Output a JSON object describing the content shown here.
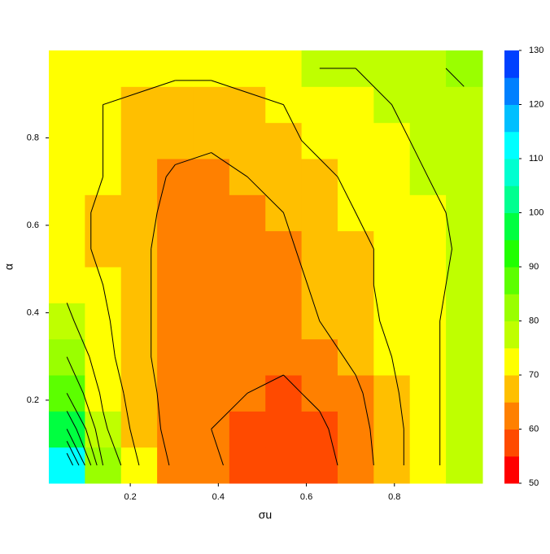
{
  "chart_data": {
    "type": "heatmap",
    "xlabel": "σu",
    "ylabel": "α",
    "xlim": [
      0.015,
      1.0
    ],
    "ylim": [
      0.01,
      1.0
    ],
    "xticks": [
      0.2,
      0.4,
      0.6,
      0.8
    ],
    "yticks": [
      0.2,
      0.4,
      0.6,
      0.8
    ],
    "x": [
      0.056,
      0.138,
      0.22,
      0.302,
      0.384,
      0.466,
      0.548,
      0.63,
      0.712,
      0.794,
      0.876,
      0.958
    ],
    "y": [
      0.051,
      0.134,
      0.216,
      0.299,
      0.381,
      0.464,
      0.546,
      0.629,
      0.711,
      0.794,
      0.876,
      0.959
    ],
    "z": [
      [
        110,
        80,
        70,
        64,
        61,
        58,
        57,
        58,
        62,
        68,
        74,
        77
      ],
      [
        95,
        76,
        68,
        63,
        60,
        58,
        58,
        59,
        63,
        68,
        74,
        77
      ],
      [
        85,
        74,
        67,
        63,
        61,
        60,
        59,
        61,
        64,
        69,
        74,
        77
      ],
      [
        80,
        72,
        66,
        63,
        62,
        61,
        61,
        63,
        66,
        70,
        74,
        77
      ],
      [
        76,
        71,
        66,
        63,
        62,
        61,
        62,
        65,
        68,
        71,
        74,
        77
      ],
      [
        74,
        70,
        66,
        63,
        62,
        62,
        63,
        66,
        69,
        71,
        74,
        76
      ],
      [
        72,
        69,
        66,
        63,
        62,
        62,
        64,
        67,
        69,
        71,
        73,
        76
      ],
      [
        72,
        69,
        67,
        63,
        62,
        63,
        65,
        68,
        70,
        72,
        74,
        76
      ],
      [
        72,
        70,
        68,
        64,
        63,
        65,
        67,
        69,
        71,
        73,
        75,
        77
      ],
      [
        71,
        70,
        69,
        67,
        66,
        67,
        69,
        71,
        72,
        74,
        76,
        78
      ],
      [
        71,
        70,
        69,
        68,
        68,
        69,
        70,
        72,
        73,
        75,
        77,
        79
      ],
      [
        74,
        73,
        72,
        71,
        71,
        72,
        74,
        75,
        75,
        77,
        79,
        81
      ]
    ],
    "levels": [
      50,
      55,
      60,
      65,
      70,
      75,
      80,
      85,
      90,
      95,
      100,
      105,
      110,
      115,
      120,
      125,
      130
    ],
    "colors": [
      "#ff0000",
      "#ff4a00",
      "#ff8000",
      "#ffbf00",
      "#ffff00",
      "#bfff00",
      "#9aff00",
      "#5cff00",
      "#20ff00",
      "#00ff40",
      "#00ff90",
      "#00ffd0",
      "#00ffff",
      "#00bfff",
      "#0080ff",
      "#0040ff"
    ],
    "colorbar_ticks": [
      50,
      60,
      70,
      80,
      90,
      100,
      110,
      120,
      130
    ],
    "contours": true
  }
}
